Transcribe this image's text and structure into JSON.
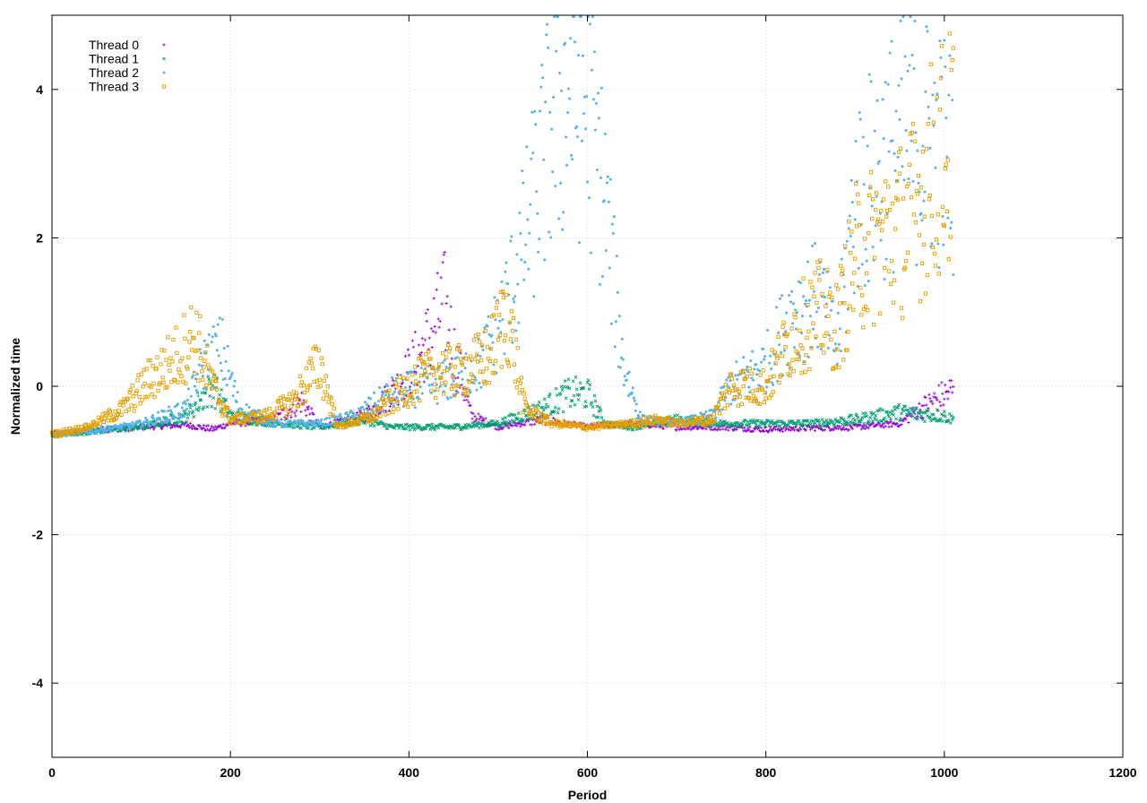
{
  "chart_data": {
    "type": "scatter",
    "title": "",
    "xlabel": "Period",
    "ylabel": "Normalized time",
    "xlim": [
      0,
      1200
    ],
    "ylim": [
      -5,
      5
    ],
    "xticks": [
      0,
      200,
      400,
      600,
      800,
      1000,
      1200
    ],
    "yticks": [
      -4,
      -2,
      0,
      2,
      4
    ],
    "xtick_labels": [
      "0",
      "200",
      "400",
      "600",
      "800",
      "1000",
      "1200"
    ],
    "ytick_labels": [
      "-4",
      "-2",
      "0",
      "2",
      "4"
    ],
    "grid": true,
    "legend_position": "top-left",
    "series": [
      {
        "name": "Thread 0",
        "color": "#9400d3",
        "marker": "plus",
        "anchors": [
          [
            0,
            -0.65
          ],
          [
            40,
            -0.6
          ],
          [
            100,
            -0.55
          ],
          [
            150,
            -0.52
          ],
          [
            180,
            -0.58
          ],
          [
            200,
            -0.5
          ],
          [
            250,
            -0.45
          ],
          [
            280,
            -0.2
          ],
          [
            300,
            -0.55
          ],
          [
            350,
            -0.4
          ],
          [
            380,
            -0.1
          ],
          [
            400,
            0.2
          ],
          [
            420,
            0.6
          ],
          [
            440,
            1.1
          ],
          [
            450,
            0.5
          ],
          [
            470,
            -0.4
          ],
          [
            500,
            -0.55
          ],
          [
            550,
            -0.45
          ],
          [
            600,
            -0.55
          ],
          [
            650,
            -0.5
          ],
          [
            700,
            -0.55
          ],
          [
            750,
            -0.55
          ],
          [
            800,
            -0.58
          ],
          [
            850,
            -0.56
          ],
          [
            900,
            -0.55
          ],
          [
            950,
            -0.5
          ],
          [
            980,
            -0.25
          ],
          [
            1010,
            -0.05
          ]
        ]
      },
      {
        "name": "Thread 1",
        "color": "#009e73",
        "marker": "cross",
        "anchors": [
          [
            0,
            -0.65
          ],
          [
            50,
            -0.6
          ],
          [
            100,
            -0.55
          ],
          [
            150,
            -0.4
          ],
          [
            180,
            0.0
          ],
          [
            200,
            -0.4
          ],
          [
            250,
            -0.5
          ],
          [
            300,
            -0.55
          ],
          [
            350,
            -0.45
          ],
          [
            380,
            -0.55
          ],
          [
            400,
            -0.55
          ],
          [
            450,
            -0.55
          ],
          [
            500,
            -0.5
          ],
          [
            550,
            -0.3
          ],
          [
            580,
            -0.1
          ],
          [
            600,
            -0.1
          ],
          [
            620,
            -0.5
          ],
          [
            650,
            -0.55
          ],
          [
            700,
            -0.45
          ],
          [
            750,
            -0.5
          ],
          [
            800,
            -0.5
          ],
          [
            850,
            -0.5
          ],
          [
            900,
            -0.45
          ],
          [
            950,
            -0.35
          ],
          [
            1000,
            -0.4
          ],
          [
            1010,
            -0.45
          ]
        ]
      },
      {
        "name": "Thread 2",
        "color": "#56b4e9",
        "marker": "dot",
        "anchors": [
          [
            0,
            -0.65
          ],
          [
            50,
            -0.6
          ],
          [
            100,
            -0.5
          ],
          [
            150,
            -0.3
          ],
          [
            170,
            0.3
          ],
          [
            190,
            0.5
          ],
          [
            210,
            -0.3
          ],
          [
            250,
            -0.5
          ],
          [
            300,
            -0.5
          ],
          [
            340,
            -0.4
          ],
          [
            380,
            -0.1
          ],
          [
            420,
            0.0
          ],
          [
            450,
            0.1
          ],
          [
            480,
            0.3
          ],
          [
            500,
            0.8
          ],
          [
            520,
            1.5
          ],
          [
            540,
            2.5
          ],
          [
            560,
            3.5
          ],
          [
            580,
            4.0
          ],
          [
            600,
            3.8
          ],
          [
            620,
            2.5
          ],
          [
            640,
            0.3
          ],
          [
            660,
            -0.45
          ],
          [
            700,
            -0.5
          ],
          [
            740,
            -0.4
          ],
          [
            760,
            0.0
          ],
          [
            800,
            0.3
          ],
          [
            830,
            1.0
          ],
          [
            860,
            1.2
          ],
          [
            880,
            0.5
          ],
          [
            900,
            2.5
          ],
          [
            930,
            3.0
          ],
          [
            960,
            3.4
          ],
          [
            990,
            3.3
          ],
          [
            1010,
            3.0
          ]
        ]
      },
      {
        "name": "Thread 3",
        "color": "#e69f00",
        "marker": "square",
        "anchors": [
          [
            0,
            -0.65
          ],
          [
            40,
            -0.55
          ],
          [
            80,
            -0.3
          ],
          [
            110,
            0.1
          ],
          [
            140,
            0.4
          ],
          [
            160,
            0.7
          ],
          [
            180,
            0.0
          ],
          [
            200,
            -0.45
          ],
          [
            240,
            -0.4
          ],
          [
            270,
            -0.2
          ],
          [
            300,
            0.3
          ],
          [
            320,
            -0.55
          ],
          [
            360,
            -0.4
          ],
          [
            380,
            -0.2
          ],
          [
            400,
            0.0
          ],
          [
            430,
            0.2
          ],
          [
            460,
            0.2
          ],
          [
            490,
            0.4
          ],
          [
            510,
            1.0
          ],
          [
            530,
            -0.3
          ],
          [
            560,
            -0.5
          ],
          [
            600,
            -0.55
          ],
          [
            650,
            -0.5
          ],
          [
            680,
            -0.45
          ],
          [
            700,
            -0.5
          ],
          [
            740,
            -0.45
          ],
          [
            760,
            0.0
          ],
          [
            800,
            0.0
          ],
          [
            830,
            0.7
          ],
          [
            860,
            1.0
          ],
          [
            880,
            0.8
          ],
          [
            900,
            1.7
          ],
          [
            930,
            2.0
          ],
          [
            960,
            2.2
          ],
          [
            990,
            3.0
          ],
          [
            1010,
            3.2
          ]
        ]
      }
    ]
  }
}
